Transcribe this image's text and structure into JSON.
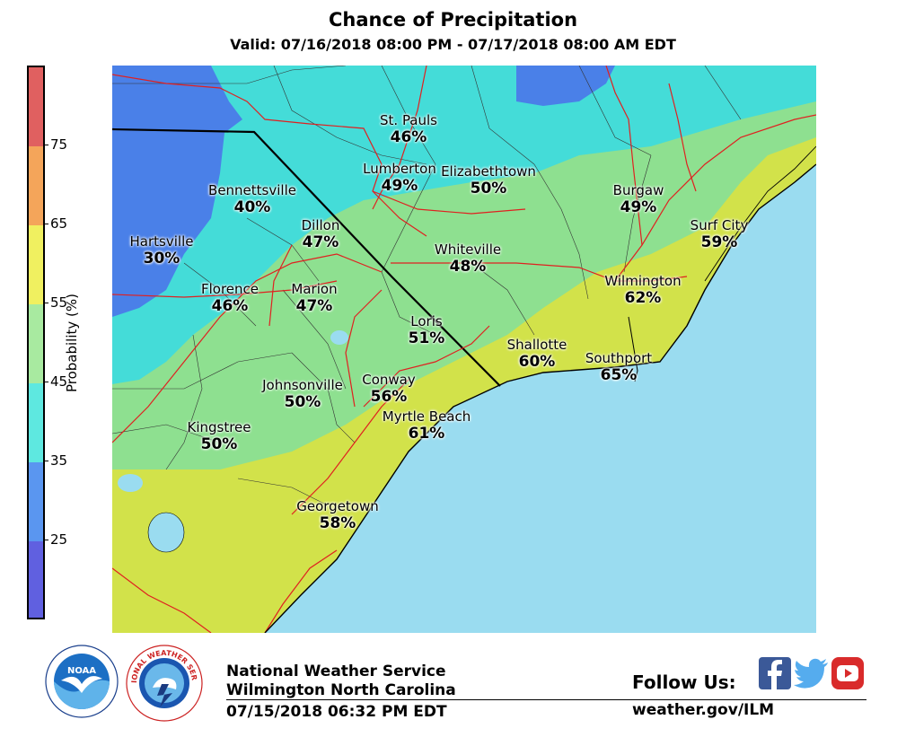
{
  "header": {
    "title": "Chance of Precipitation",
    "subtitle": "Valid: 07/16/2018 08:00 PM - 07/17/2018 08:00 AM EDT"
  },
  "colorbar": {
    "label": "Probability (%)",
    "ticks": [
      "75",
      "65",
      "55",
      "45",
      "35",
      "25"
    ],
    "bands": [
      {
        "range": "75+",
        "color": "#e06060"
      },
      {
        "range": "65-75",
        "color": "#f4a55a"
      },
      {
        "range": "55-65",
        "color": "#f0f060"
      },
      {
        "range": "45-55",
        "color": "#a8eaa0"
      },
      {
        "range": "35-45",
        "color": "#5ee8e0"
      },
      {
        "range": "25-35",
        "color": "#5a96f0"
      },
      {
        "range": "<25",
        "color": "#6060e0"
      }
    ]
  },
  "cities": [
    {
      "name": "St. Pauls",
      "pct": "46%"
    },
    {
      "name": "Lumberton",
      "pct": "49%"
    },
    {
      "name": "Elizabethtown",
      "pct": "50%"
    },
    {
      "name": "Bennettsville",
      "pct": "40%"
    },
    {
      "name": "Burgaw",
      "pct": "49%"
    },
    {
      "name": "Dillon",
      "pct": "47%"
    },
    {
      "name": "Surf City",
      "pct": "59%"
    },
    {
      "name": "Hartsville",
      "pct": "30%"
    },
    {
      "name": "Whiteville",
      "pct": "48%"
    },
    {
      "name": "Wilmington",
      "pct": "62%"
    },
    {
      "name": "Florence",
      "pct": "46%"
    },
    {
      "name": "Marion",
      "pct": "47%"
    },
    {
      "name": "Loris",
      "pct": "51%"
    },
    {
      "name": "Shallotte",
      "pct": "60%"
    },
    {
      "name": "Southport",
      "pct": "65%"
    },
    {
      "name": "Conway",
      "pct": "56%"
    },
    {
      "name": "Johnsonville",
      "pct": "50%"
    },
    {
      "name": "Myrtle Beach",
      "pct": "61%"
    },
    {
      "name": "Kingstree",
      "pct": "50%"
    },
    {
      "name": "Georgetown",
      "pct": "58%"
    }
  ],
  "footer": {
    "org": "National Weather Service",
    "office": "Wilmington North Carolina",
    "issued": "07/15/2018 06:32 PM EDT",
    "follow": "Follow Us:",
    "url": "weather.gov/ILM",
    "noaa_logo_text": "NOAA",
    "nws_logo_text": "NATIONAL WEATHER SERVICE"
  },
  "colors": {
    "ocean": "#9adcf0",
    "facebook": "#3b5998",
    "twitter": "#55acee",
    "youtube": "#d92b2b"
  }
}
